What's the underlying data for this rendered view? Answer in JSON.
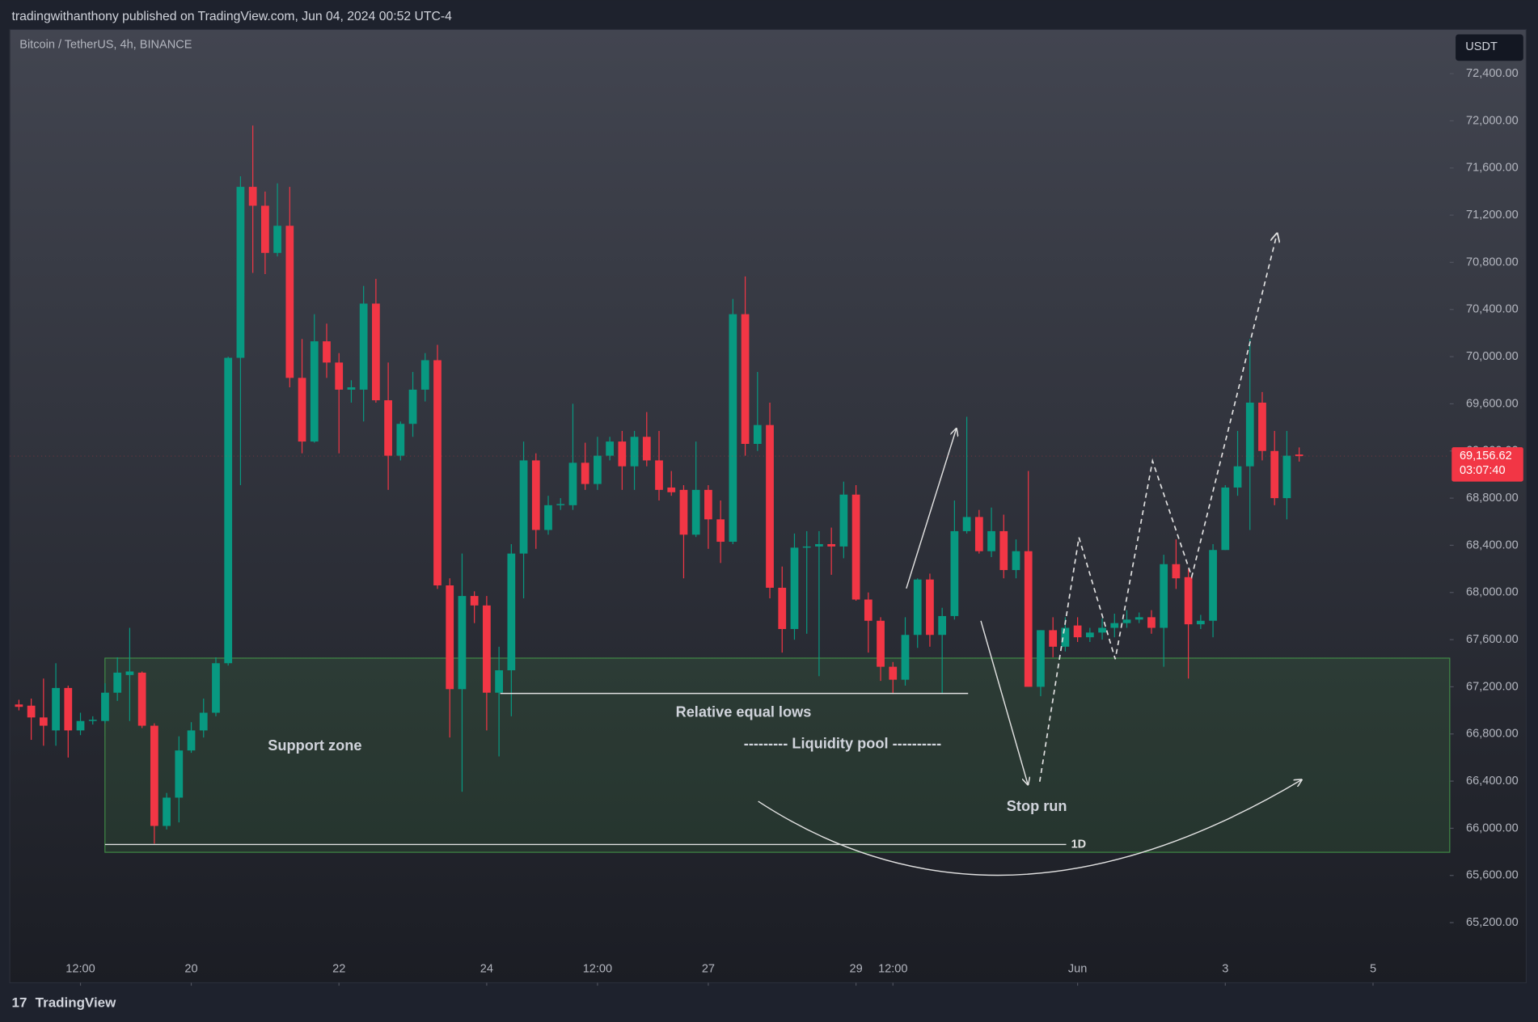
{
  "header": {
    "publisher": "tradingwithanthony published on TradingView.com, Jun 04, 2024 00:52 UTC-4",
    "logo": "TradingView"
  },
  "chart_data": {
    "type": "candlestick",
    "title": "Bitcoin / TetherUS, 4h, BINANCE",
    "currency": "USDT",
    "up_color": "#089981",
    "down_color": "#f23645",
    "log_scale": false,
    "grid": false,
    "ylim": [
      64690,
      72775
    ],
    "yticks": [
      {
        "value": 65200,
        "label": "65,200.00"
      },
      {
        "value": 65600,
        "label": "65,600.00"
      },
      {
        "value": 66000,
        "label": "66,000.00"
      },
      {
        "value": 66400,
        "label": "66,400.00"
      },
      {
        "value": 66800,
        "label": "66,800.00"
      },
      {
        "value": 67200,
        "label": "67,200.00"
      },
      {
        "value": 67600,
        "label": "67,600.00"
      },
      {
        "value": 68000,
        "label": "68,000.00"
      },
      {
        "value": 68400,
        "label": "68,400.00"
      },
      {
        "value": 68800,
        "label": "68,800.00"
      },
      {
        "value": 69200,
        "label": "69,200.00"
      },
      {
        "value": 69600,
        "label": "69,600.00"
      },
      {
        "value": 70000,
        "label": "70,000.00"
      },
      {
        "value": 70400,
        "label": "70,400.00"
      },
      {
        "value": 70800,
        "label": "70,800.00"
      },
      {
        "value": 71200,
        "label": "71,200.00"
      },
      {
        "value": 71600,
        "label": "71,600.00"
      },
      {
        "value": 72000,
        "label": "72,000.00"
      },
      {
        "value": 72400,
        "label": "72,400.00"
      }
    ],
    "xlim": [
      -0.74,
      116.23
    ],
    "xticks": [
      {
        "value": 5,
        "label": "12:00"
      },
      {
        "value": 14,
        "label": "20"
      },
      {
        "value": 26,
        "label": "22"
      },
      {
        "value": 38,
        "label": "24"
      },
      {
        "value": 47,
        "label": "12:00"
      },
      {
        "value": 56,
        "label": "27"
      },
      {
        "value": 68,
        "label": "29"
      },
      {
        "value": 71,
        "label": "12:00"
      },
      {
        "value": 86,
        "label": "Jun"
      },
      {
        "value": 98,
        "label": "3"
      },
      {
        "value": 110,
        "label": "5"
      }
    ],
    "ohlc": [
      [
        67050,
        67090,
        67000,
        67030
      ],
      [
        67040,
        67100,
        66750,
        66940
      ],
      [
        66940,
        67270,
        66700,
        66870
      ],
      [
        66830,
        67400,
        66700,
        67190
      ],
      [
        67190,
        67210,
        66600,
        66830
      ],
      [
        66830,
        66980,
        66790,
        66910
      ],
      [
        66910,
        66950,
        66880,
        66920
      ],
      [
        66910,
        67230,
        66890,
        67150
      ],
      [
        67150,
        67450,
        67080,
        67320
      ],
      [
        67300,
        67700,
        66910,
        67330
      ],
      [
        67320,
        67330,
        66850,
        66870
      ],
      [
        66870,
        66890,
        65870,
        66020
      ],
      [
        66020,
        66300,
        65990,
        66260
      ],
      [
        66260,
        66780,
        66050,
        66660
      ],
      [
        66660,
        66900,
        66640,
        66830
      ],
      [
        66830,
        67100,
        66770,
        66980
      ],
      [
        66980,
        67450,
        66950,
        67400
      ],
      [
        67400,
        70000,
        67380,
        69990
      ],
      [
        69990,
        71530,
        68910,
        71440
      ],
      [
        71440,
        71960,
        70710,
        71280
      ],
      [
        71280,
        71400,
        70700,
        70880
      ],
      [
        70880,
        71470,
        70850,
        71110
      ],
      [
        71110,
        71440,
        69740,
        69820
      ],
      [
        69820,
        70150,
        69180,
        69280
      ],
      [
        69280,
        70360,
        69270,
        70130
      ],
      [
        70130,
        70280,
        69820,
        69950
      ],
      [
        69950,
        70030,
        69180,
        69720
      ],
      [
        69720,
        69800,
        69610,
        69740
      ],
      [
        69720,
        70600,
        69450,
        70450
      ],
      [
        70450,
        70660,
        69610,
        69630
      ],
      [
        69630,
        69950,
        68870,
        69160
      ],
      [
        69160,
        69450,
        69120,
        69430
      ],
      [
        69430,
        69870,
        69320,
        69720
      ],
      [
        69720,
        70030,
        69620,
        69970
      ],
      [
        69970,
        70100,
        68030,
        68060
      ],
      [
        68060,
        68120,
        66770,
        67180
      ],
      [
        67180,
        68330,
        66310,
        67970
      ],
      [
        67970,
        68010,
        67740,
        67890
      ],
      [
        67890,
        67970,
        66830,
        67150
      ],
      [
        67150,
        67540,
        66610,
        67340
      ],
      [
        67340,
        68410,
        66950,
        68330
      ],
      [
        68330,
        69280,
        67950,
        69120
      ],
      [
        69120,
        69180,
        68370,
        68530
      ],
      [
        68530,
        68820,
        68490,
        68740
      ],
      [
        68740,
        68800,
        68700,
        68750
      ],
      [
        68740,
        69600,
        68700,
        69100
      ],
      [
        69100,
        69270,
        68870,
        68920
      ],
      [
        68920,
        69320,
        68870,
        69160
      ],
      [
        69160,
        69320,
        69120,
        69280
      ],
      [
        69280,
        69370,
        68870,
        69070
      ],
      [
        69070,
        69370,
        68870,
        69320
      ],
      [
        69320,
        69530,
        69070,
        69120
      ],
      [
        69120,
        69370,
        68780,
        68870
      ],
      [
        68890,
        69030,
        68820,
        68850
      ],
      [
        68870,
        68910,
        68120,
        68490
      ],
      [
        68490,
        69280,
        68470,
        68870
      ],
      [
        68870,
        68910,
        68370,
        68620
      ],
      [
        68620,
        68780,
        68250,
        68430
      ],
      [
        68430,
        70490,
        68410,
        70360
      ],
      [
        70360,
        70680,
        69160,
        69260
      ],
      [
        69260,
        69870,
        69200,
        69420
      ],
      [
        69420,
        69610,
        67950,
        68040
      ],
      [
        68040,
        68220,
        67490,
        67690
      ],
      [
        67690,
        68500,
        67600,
        68380
      ],
      [
        68380,
        68520,
        67650,
        68390
      ],
      [
        68390,
        68520,
        67290,
        68410
      ],
      [
        68410,
        68550,
        68150,
        68390
      ],
      [
        68390,
        68940,
        68290,
        68830
      ],
      [
        68830,
        68910,
        67930,
        67940
      ],
      [
        67940,
        68000,
        67490,
        67760
      ],
      [
        67760,
        67790,
        67250,
        67370
      ],
      [
        67370,
        67410,
        67140,
        67260
      ],
      [
        67260,
        67790,
        67210,
        67640
      ],
      [
        67640,
        68120,
        67530,
        68110
      ],
      [
        68110,
        68160,
        67540,
        67640
      ],
      [
        67640,
        67870,
        67140,
        67800
      ],
      [
        67800,
        68780,
        67770,
        68520
      ],
      [
        68520,
        69490,
        68500,
        68640
      ],
      [
        68640,
        68700,
        68330,
        68350
      ],
      [
        68350,
        68720,
        68300,
        68520
      ],
      [
        68520,
        68660,
        68120,
        68190
      ],
      [
        68190,
        68450,
        68120,
        68350
      ],
      [
        68350,
        69030,
        67200,
        67200
      ],
      [
        67200,
        67680,
        67120,
        67680
      ],
      [
        67680,
        67790,
        67450,
        67540
      ],
      [
        67540,
        67790,
        67500,
        67700
      ],
      [
        67720,
        67790,
        67580,
        67620
      ],
      [
        67620,
        67700,
        67580,
        67660
      ],
      [
        67660,
        67780,
        67600,
        67700
      ],
      [
        67700,
        67820,
        67620,
        67740
      ],
      [
        67740,
        67850,
        67700,
        67770
      ],
      [
        67770,
        67830,
        67740,
        67790
      ],
      [
        67790,
        67850,
        67650,
        67700
      ],
      [
        67700,
        68320,
        67370,
        68240
      ],
      [
        68240,
        68450,
        68030,
        68120
      ],
      [
        68130,
        68200,
        67270,
        67730
      ],
      [
        67730,
        67810,
        67690,
        67760
      ],
      [
        67760,
        68410,
        67620,
        68360
      ],
      [
        68360,
        68910,
        68360,
        68890
      ],
      [
        68890,
        69370,
        68820,
        69070
      ],
      [
        69070,
        70150,
        68530,
        69610
      ],
      [
        69610,
        69700,
        69120,
        69200
      ],
      [
        69200,
        69370,
        68740,
        68800
      ],
      [
        68800,
        69370,
        68620,
        69160
      ],
      [
        69170,
        69230,
        69110,
        69156.62
      ]
    ],
    "last_price": {
      "value": 69156.62,
      "label": "69,156.62"
    },
    "countdown": "03:07:40",
    "annotations": [
      "Support zone",
      "Relative equal lows",
      "--------- Liquidity pool ----------",
      "Stop run",
      "1D"
    ]
  }
}
